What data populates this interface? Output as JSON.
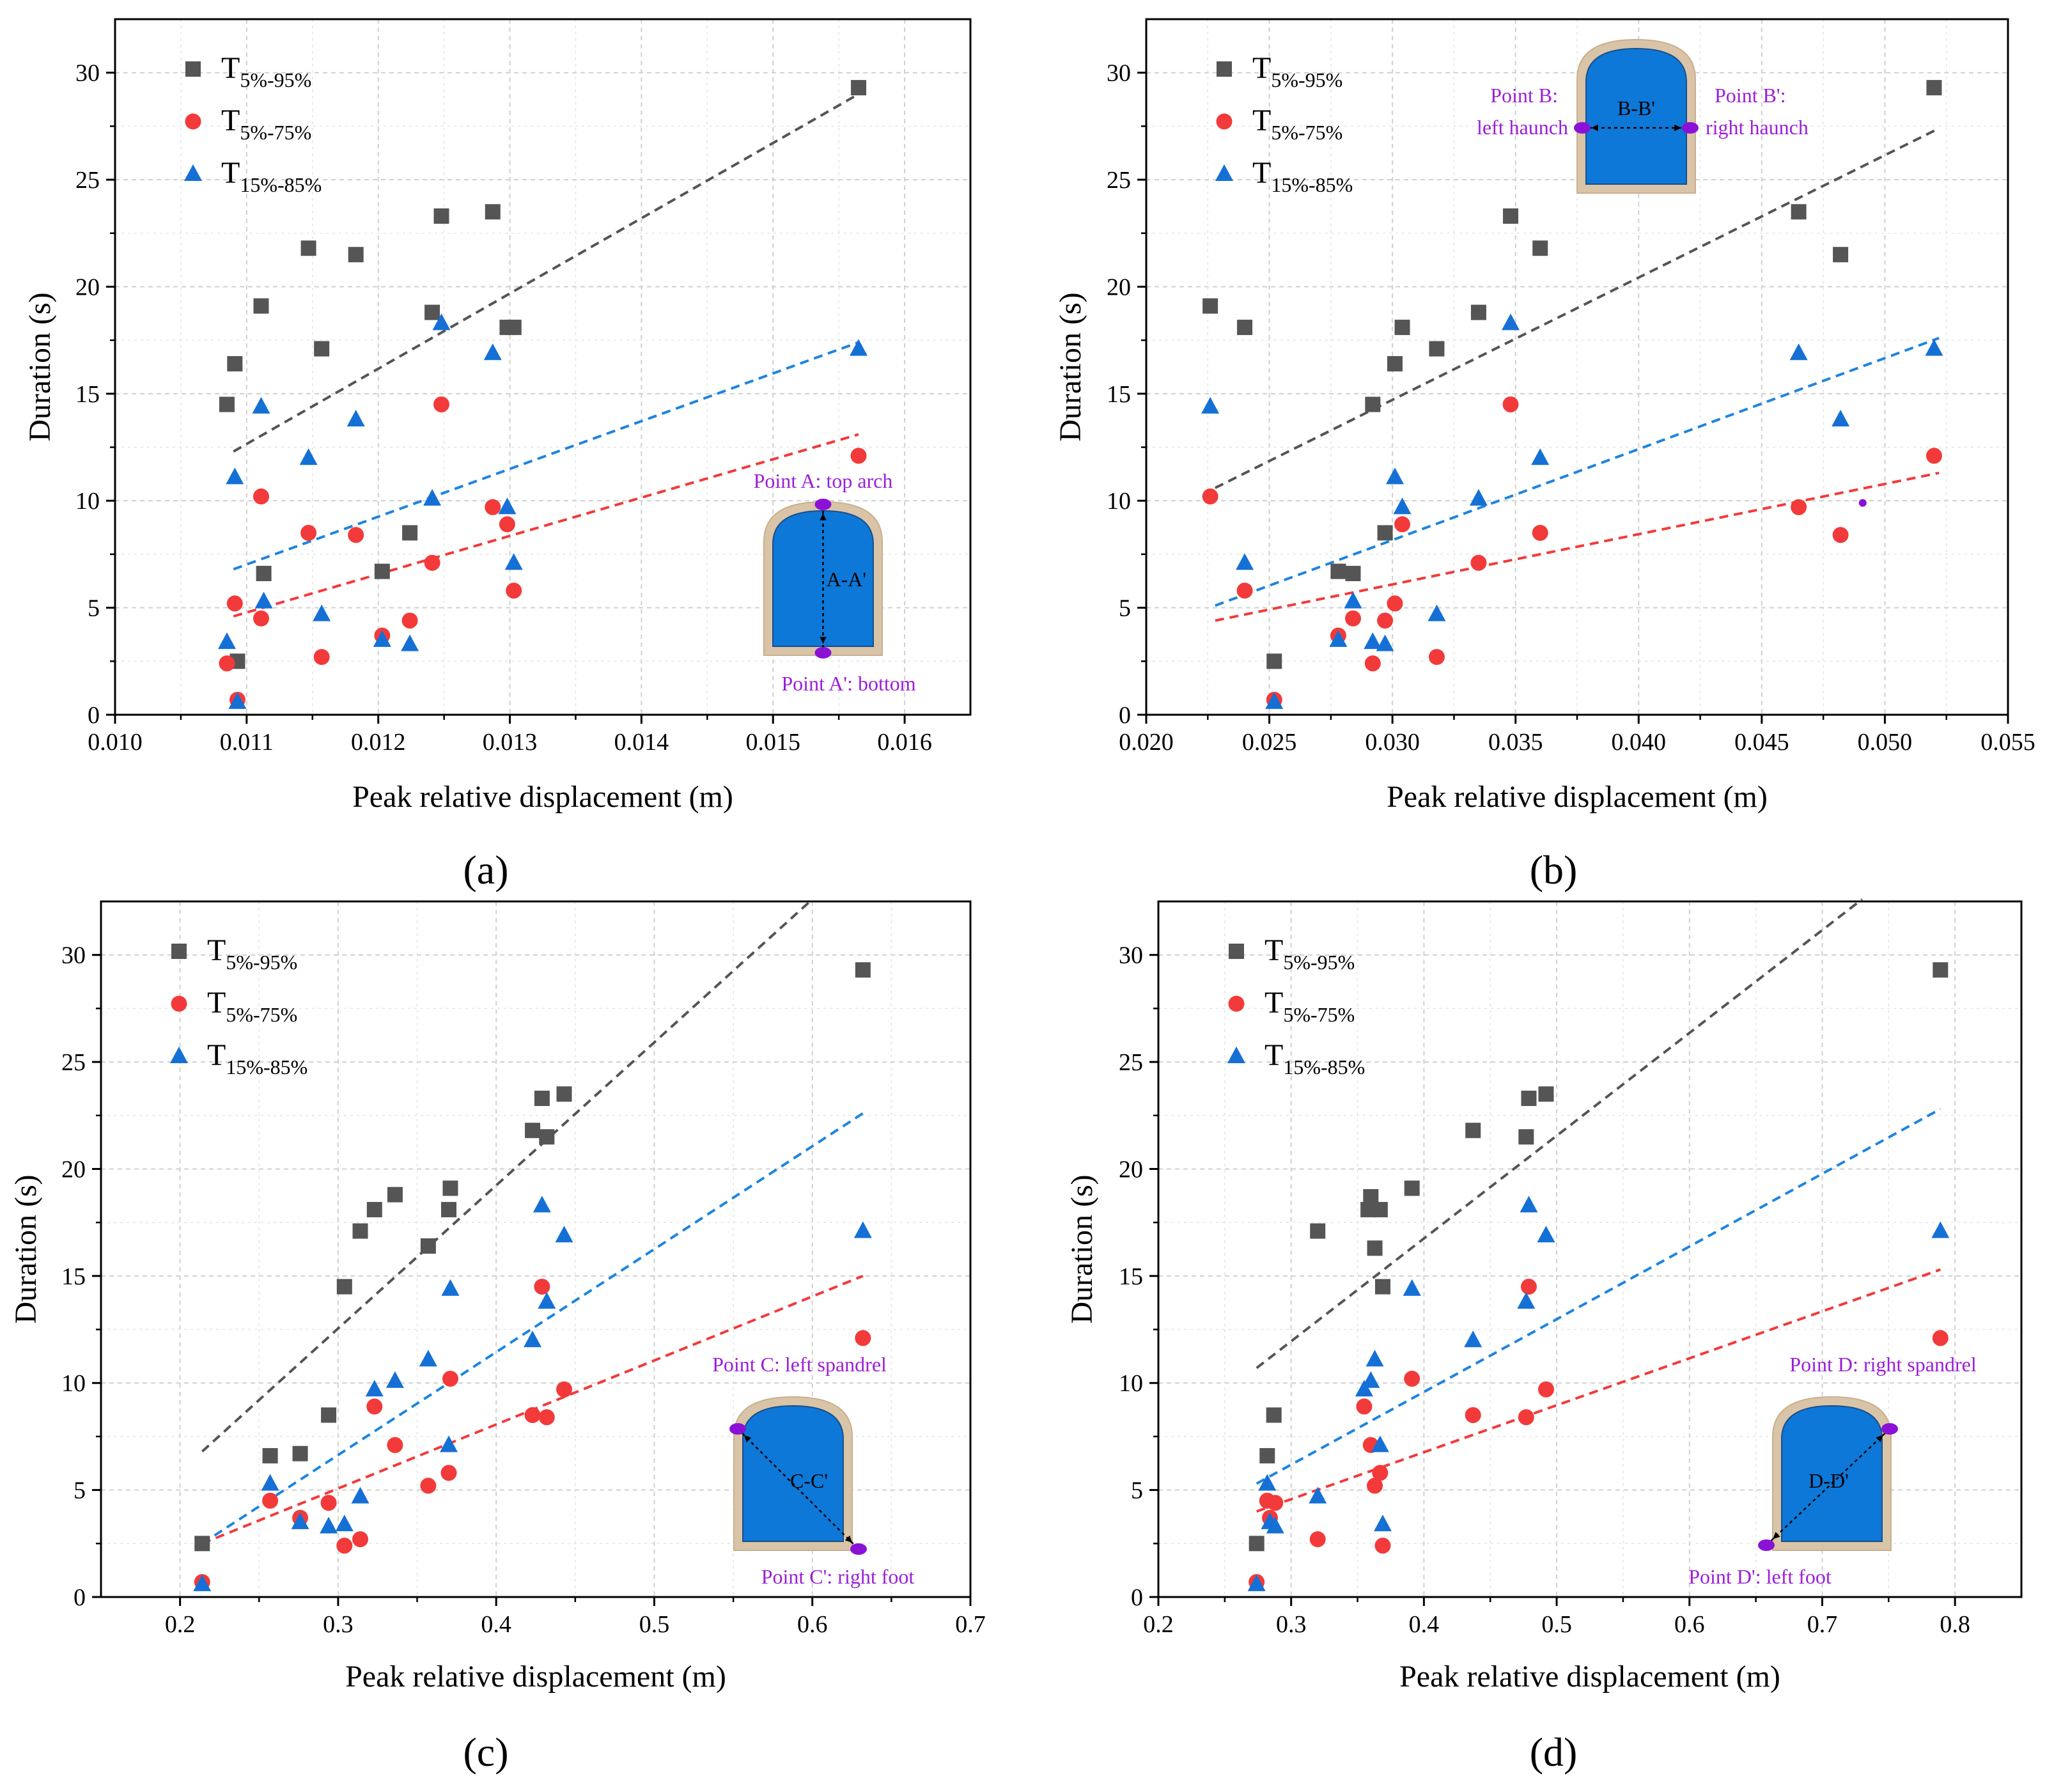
{
  "chart_data": [
    {
      "type": "scatter",
      "panel_label": "(a)",
      "xlabel": "Peak relative displacement (m)",
      "ylabel": "Duration (s)",
      "xlim": [
        0.01,
        0.0165
      ],
      "ylim": [
        0,
        32.5
      ],
      "xticks": [
        "0.010",
        "0.011",
        "0.012",
        "0.013",
        "0.014",
        "0.015",
        "0.016"
      ],
      "xtick_values": [
        0.01,
        0.011,
        0.012,
        0.013,
        0.014,
        0.015,
        0.016
      ],
      "yticks": [
        "0",
        "5",
        "10",
        "15",
        "20",
        "25",
        "30"
      ],
      "ytick_values": [
        0,
        5,
        10,
        15,
        20,
        25,
        30
      ],
      "grid": true,
      "legend_position": "top-left",
      "series": [
        {
          "name": "T5%-95%",
          "legend_main": "T",
          "legend_sub": "5%-95%",
          "marker": "square",
          "color": "#555555",
          "line_color": "#555555",
          "x": [
            0.01085,
            0.01091,
            0.01093,
            0.01111,
            0.01113,
            0.01147,
            0.01157,
            0.01183,
            0.01203,
            0.01224,
            0.01241,
            0.01248,
            0.01287,
            0.01298,
            0.01303,
            0.01565
          ],
          "y": [
            14.5,
            16.4,
            2.5,
            19.1,
            6.6,
            21.8,
            17.1,
            21.5,
            6.7,
            8.5,
            18.8,
            23.3,
            23.5,
            18.1,
            18.1,
            29.3
          ],
          "fit": {
            "x": [
              0.0109,
              0.01565
            ],
            "y": [
              12.3,
              29.0
            ]
          }
        },
        {
          "name": "T5%-75%",
          "legend_main": "T",
          "legend_sub": "5%-75%",
          "marker": "circle",
          "color": "#f23a3a",
          "line_color": "#f23a3a",
          "x": [
            0.01085,
            0.01091,
            0.01093,
            0.01111,
            0.01111,
            0.01147,
            0.01157,
            0.01183,
            0.01203,
            0.01224,
            0.01241,
            0.01248,
            0.01287,
            0.01298,
            0.01303,
            0.01565
          ],
          "y": [
            2.4,
            5.2,
            0.7,
            10.2,
            4.5,
            8.5,
            2.7,
            8.4,
            3.7,
            4.4,
            7.1,
            14.5,
            9.7,
            8.9,
            5.8,
            12.1
          ],
          "fit": {
            "x": [
              0.0109,
              0.01565
            ],
            "y": [
              4.6,
              13.1
            ]
          }
        },
        {
          "name": "T15%-85%",
          "legend_main": "T",
          "legend_sub": "15%-85%",
          "marker": "triangle",
          "color": "#1570d6",
          "line_color": "#1e84e0",
          "x": [
            0.01085,
            0.01091,
            0.01093,
            0.01111,
            0.01113,
            0.01147,
            0.01157,
            0.01183,
            0.01203,
            0.01224,
            0.01241,
            0.01248,
            0.01287,
            0.01298,
            0.01303,
            0.01565
          ],
          "y": [
            3.4,
            11.1,
            0.6,
            14.4,
            5.3,
            12.0,
            4.7,
            13.8,
            3.5,
            3.3,
            10.1,
            18.3,
            16.9,
            9.7,
            7.1,
            17.1
          ],
          "fit": {
            "x": [
              0.0109,
              0.01565
            ],
            "y": [
              6.8,
              17.4
            ]
          }
        }
      ],
      "inset": {
        "type": "vertical",
        "section_label": "A-A'",
        "label_start": "Point A: top arch",
        "label_end": "Point A': bottom"
      }
    },
    {
      "type": "scatter",
      "panel_label": "(b)",
      "xlabel": "Peak relative displacement (m)",
      "ylabel": "Duration (s)",
      "xlim": [
        0.02,
        0.055
      ],
      "ylim": [
        0,
        32.5
      ],
      "xticks": [
        "0.020",
        "0.025",
        "0.030",
        "0.035",
        "0.040",
        "0.045",
        "0.050",
        "0.055"
      ],
      "xtick_values": [
        0.02,
        0.025,
        0.03,
        0.035,
        0.04,
        0.045,
        0.05,
        0.055
      ],
      "yticks": [
        "0",
        "5",
        "10",
        "15",
        "20",
        "25",
        "30"
      ],
      "ytick_values": [
        0,
        5,
        10,
        15,
        20,
        25,
        30
      ],
      "grid": true,
      "legend_position": "top-left",
      "series": [
        {
          "name": "T5%-95%",
          "legend_main": "T",
          "legend_sub": "5%-95%",
          "marker": "square",
          "color": "#555555",
          "line_color": "#555555",
          "x": [
            0.0226,
            0.024,
            0.0252,
            0.0278,
            0.0284,
            0.0292,
            0.0297,
            0.0301,
            0.0304,
            0.0318,
            0.0335,
            0.0348,
            0.036,
            0.0465,
            0.0482,
            0.052
          ],
          "y": [
            19.1,
            18.1,
            2.5,
            6.7,
            6.6,
            14.5,
            8.5,
            16.4,
            18.1,
            17.1,
            18.8,
            23.3,
            21.8,
            23.5,
            21.5,
            29.3
          ],
          "fit": {
            "x": [
              0.0228,
              0.0522
            ],
            "y": [
              10.6,
              27.4
            ]
          }
        },
        {
          "name": "T5%-75%",
          "legend_main": "T",
          "legend_sub": "5%-75%",
          "marker": "circle",
          "color": "#f23a3a",
          "line_color": "#f23a3a",
          "x": [
            0.0226,
            0.024,
            0.0252,
            0.0278,
            0.0284,
            0.0292,
            0.0297,
            0.0301,
            0.0304,
            0.0318,
            0.0335,
            0.0348,
            0.036,
            0.0465,
            0.0482,
            0.052
          ],
          "y": [
            10.2,
            5.8,
            0.7,
            3.7,
            4.5,
            2.4,
            4.4,
            5.2,
            8.9,
            2.7,
            7.1,
            14.5,
            8.5,
            9.7,
            8.4,
            12.1
          ],
          "fit": {
            "x": [
              0.0228,
              0.0522
            ],
            "y": [
              4.4,
              11.3
            ]
          }
        },
        {
          "name": "T15%-85%",
          "legend_main": "T",
          "legend_sub": "15%-85%",
          "marker": "triangle",
          "color": "#1570d6",
          "line_color": "#1e84e0",
          "x": [
            0.0226,
            0.024,
            0.0252,
            0.0278,
            0.0284,
            0.0292,
            0.0297,
            0.0301,
            0.0304,
            0.0318,
            0.0335,
            0.0348,
            0.036,
            0.0465,
            0.0482,
            0.052
          ],
          "y": [
            14.4,
            7.1,
            0.6,
            3.5,
            5.3,
            3.4,
            3.3,
            11.1,
            9.7,
            4.7,
            10.1,
            18.3,
            12.0,
            16.9,
            13.8,
            17.1
          ],
          "fit": {
            "x": [
              0.0228,
              0.0522
            ],
            "y": [
              5.1,
              17.6
            ]
          }
        }
      ],
      "inset": {
        "type": "horizontal",
        "section_label": "B-B'",
        "label_start_1": "Point B:",
        "label_start_2": "left haunch",
        "label_end_1": "Point B':",
        "label_end_2": "right haunch"
      }
    },
    {
      "type": "scatter",
      "panel_label": "(c)",
      "xlabel": "Peak relative displacement (m)",
      "ylabel": "Duration (s)",
      "xlim": [
        0.15,
        0.7
      ],
      "ylim": [
        0,
        32.5
      ],
      "xticks": [
        "0.2",
        "0.3",
        "0.4",
        "0.5",
        "0.6",
        "0.7"
      ],
      "xtick_values": [
        0.2,
        0.3,
        0.4,
        0.5,
        0.6,
        0.7
      ],
      "yticks": [
        "0",
        "5",
        "10",
        "15",
        "20",
        "25",
        "30"
      ],
      "ytick_values": [
        0,
        5,
        10,
        15,
        20,
        25,
        30
      ],
      "grid": true,
      "legend_position": "top-left",
      "series": [
        {
          "name": "T5%-95%",
          "legend_main": "T",
          "legend_sub": "5%-95%",
          "marker": "square",
          "color": "#555555",
          "line_color": "#555555",
          "x": [
            0.214,
            0.257,
            0.276,
            0.294,
            0.304,
            0.314,
            0.323,
            0.336,
            0.357,
            0.37,
            0.371,
            0.423,
            0.429,
            0.432,
            0.443,
            0.632
          ],
          "y": [
            2.5,
            6.6,
            6.7,
            8.5,
            14.5,
            17.1,
            18.1,
            18.8,
            16.4,
            18.1,
            19.1,
            21.8,
            23.3,
            21.5,
            23.5,
            29.3
          ],
          "fit": {
            "x": [
              0.214,
              0.6
            ],
            "y": [
              6.8,
              32.6
            ]
          }
        },
        {
          "name": "T5%-75%",
          "legend_main": "T",
          "legend_sub": "5%-75%",
          "marker": "circle",
          "color": "#f23a3a",
          "line_color": "#f23a3a",
          "x": [
            0.214,
            0.257,
            0.276,
            0.294,
            0.304,
            0.314,
            0.323,
            0.336,
            0.357,
            0.37,
            0.371,
            0.423,
            0.429,
            0.432,
            0.443,
            0.632
          ],
          "y": [
            0.7,
            4.5,
            3.7,
            4.4,
            2.4,
            2.7,
            8.9,
            7.1,
            5.2,
            5.8,
            10.2,
            8.5,
            14.5,
            8.4,
            9.7,
            12.1
          ],
          "fit": {
            "x": [
              0.214,
              0.632
            ],
            "y": [
              2.5,
              15.0
            ]
          }
        },
        {
          "name": "T15%-85%",
          "legend_main": "T",
          "legend_sub": "15%-85%",
          "marker": "triangle",
          "color": "#1570d6",
          "line_color": "#1e84e0",
          "x": [
            0.214,
            0.257,
            0.276,
            0.294,
            0.304,
            0.314,
            0.323,
            0.336,
            0.357,
            0.37,
            0.371,
            0.423,
            0.429,
            0.432,
            0.443,
            0.632
          ],
          "y": [
            0.6,
            5.3,
            3.5,
            3.3,
            3.4,
            4.7,
            9.7,
            10.1,
            11.1,
            7.1,
            14.4,
            12.0,
            18.3,
            13.8,
            16.9,
            17.1
          ],
          "fit": {
            "x": [
              0.214,
              0.632
            ],
            "y": [
              2.5,
              22.6
            ]
          }
        }
      ],
      "inset": {
        "type": "diag-down",
        "section_label": "C-C'",
        "label_start": "Point C: left spandrel",
        "label_end": "Point C': right foot"
      }
    },
    {
      "type": "scatter",
      "panel_label": "(d)",
      "xlabel": "Peak relative displacement (m)",
      "ylabel": "Duration (s)",
      "xlim": [
        0.2,
        0.85
      ],
      "ylim": [
        0,
        32.5
      ],
      "xticks": [
        "0.2",
        "0.3",
        "0.4",
        "0.5",
        "0.6",
        "0.7",
        "0.8"
      ],
      "xtick_values": [
        0.2,
        0.3,
        0.4,
        0.5,
        0.6,
        0.7,
        0.8
      ],
      "yticks": [
        "0",
        "5",
        "10",
        "15",
        "20",
        "25",
        "30"
      ],
      "ytick_values": [
        0,
        5,
        10,
        15,
        20,
        25,
        30
      ],
      "grid": true,
      "legend_position": "top-left",
      "series": [
        {
          "name": "T5%-95%",
          "legend_main": "T",
          "legend_sub": "5%-95%",
          "marker": "square",
          "color": "#555555",
          "line_color": "#555555",
          "x": [
            0.274,
            0.282,
            0.287,
            0.32,
            0.358,
            0.36,
            0.363,
            0.367,
            0.369,
            0.391,
            0.437,
            0.477,
            0.479,
            0.492,
            0.789
          ],
          "y": [
            2.5,
            6.6,
            8.5,
            17.1,
            18.1,
            18.7,
            16.3,
            18.1,
            14.5,
            19.1,
            21.8,
            21.5,
            23.3,
            23.5,
            29.3
          ],
          "fit": {
            "x": [
              0.274,
              0.73
            ],
            "y": [
              10.7,
              32.6
            ]
          }
        },
        {
          "name": "T5%-75%",
          "legend_main": "T",
          "legend_sub": "5%-75%",
          "marker": "circle",
          "color": "#f23a3a",
          "line_color": "#f23a3a",
          "x": [
            0.274,
            0.282,
            0.284,
            0.288,
            0.32,
            0.355,
            0.36,
            0.363,
            0.367,
            0.369,
            0.391,
            0.437,
            0.477,
            0.479,
            0.492,
            0.789
          ],
          "y": [
            0.7,
            4.5,
            3.7,
            4.4,
            2.7,
            8.9,
            7.1,
            5.2,
            5.8,
            2.4,
            10.2,
            8.5,
            8.4,
            14.5,
            9.7,
            12.1
          ],
          "fit": {
            "x": [
              0.274,
              0.789
            ],
            "y": [
              4.0,
              15.3
            ]
          }
        },
        {
          "name": "T15%-85%",
          "legend_main": "T",
          "legend_sub": "15%-85%",
          "marker": "triangle",
          "color": "#1570d6",
          "line_color": "#1e84e0",
          "x": [
            0.274,
            0.282,
            0.284,
            0.288,
            0.32,
            0.355,
            0.36,
            0.363,
            0.367,
            0.369,
            0.391,
            0.437,
            0.477,
            0.479,
            0.492,
            0.789
          ],
          "y": [
            0.6,
            5.3,
            3.5,
            3.3,
            4.7,
            9.7,
            10.1,
            11.1,
            7.1,
            3.4,
            14.4,
            12.0,
            13.8,
            18.3,
            16.9,
            17.1
          ],
          "fit": {
            "x": [
              0.274,
              0.789
            ],
            "y": [
              5.3,
              22.8
            ]
          }
        }
      ],
      "inset": {
        "type": "diag-up",
        "section_label": "D-D'",
        "label_start": "Point D: right spandrel",
        "label_end": "Point D': left foot"
      }
    }
  ]
}
